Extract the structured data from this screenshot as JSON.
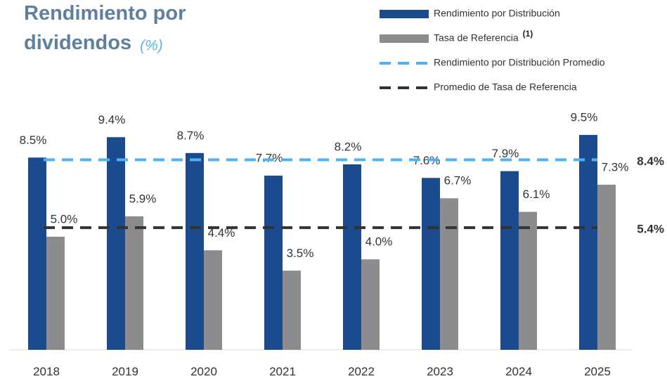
{
  "chart_data": {
    "type": "bar",
    "title": "Rendimiento por dividendos",
    "subtitle": "(%)",
    "categories": [
      "2018",
      "2019",
      "2020",
      "2021",
      "2022",
      "2023",
      "2024",
      "2025"
    ],
    "series": [
      {
        "name": "Rendimiento por Distribución",
        "color": "#1b4b8e",
        "values": [
          8.5,
          9.4,
          8.7,
          7.7,
          8.2,
          7.6,
          7.9,
          9.5
        ],
        "value_labels": [
          "8.5%",
          "9.4%",
          "8.7%",
          "7.7%",
          "8.2%",
          "7.6%",
          "7.9%",
          "9.5%"
        ]
      },
      {
        "name": "Tasa de Referencia",
        "note": "(1)",
        "color": "#8c8c8c",
        "values": [
          5.0,
          5.9,
          4.4,
          3.5,
          4.0,
          6.7,
          6.1,
          7.3
        ],
        "value_labels": [
          "5.0%",
          "5.9%",
          "4.4%",
          "3.5%",
          "4.0%",
          "6.7%",
          "6.1%",
          "7.3%"
        ]
      }
    ],
    "reference_lines": [
      {
        "name": "Rendimiento por Distribución Promedio",
        "value": 8.4,
        "label": "8.4%",
        "color": "#4db3f5"
      },
      {
        "name": "Promedio de Tasa de Referencia",
        "value": 5.4,
        "label": "5.4%",
        "color": "#333333"
      }
    ],
    "ylim": [
      0,
      10
    ]
  }
}
